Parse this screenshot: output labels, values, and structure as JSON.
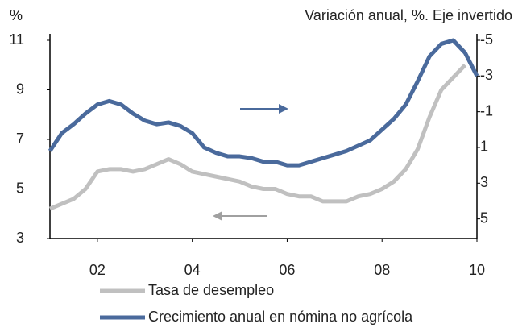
{
  "chart_data": {
    "type": "line",
    "y_label": "%",
    "y2_label": "Variación anual, %. Eje invertido",
    "xlim": [
      2001,
      2010
    ],
    "xticks": [
      {
        "value": 2002,
        "label": "02"
      },
      {
        "value": 2004,
        "label": "04"
      },
      {
        "value": 2006,
        "label": "06"
      },
      {
        "value": 2008,
        "label": "08"
      },
      {
        "value": 2010,
        "label": "10"
      }
    ],
    "ylim": [
      3,
      11
    ],
    "yticks": [
      3,
      5,
      7,
      9,
      11
    ],
    "y2lim": [
      -5,
      6.1
    ],
    "y2ticks": [
      -5,
      -3,
      -1,
      1,
      3,
      5
    ],
    "y2_inverted": true,
    "legend": "bottom",
    "x": [
      2001,
      2001.25,
      2001.5,
      2001.75,
      2002,
      2002.25,
      2002.5,
      2002.75,
      2003,
      2003.25,
      2003.5,
      2003.75,
      2004,
      2004.25,
      2004.5,
      2004.75,
      2005,
      2005.25,
      2005.5,
      2005.75,
      2006,
      2006.25,
      2006.5,
      2006.75,
      2007,
      2007.25,
      2007.5,
      2007.75,
      2008,
      2008.25,
      2008.5,
      2008.75,
      2009,
      2009.25,
      2009.5,
      2009.75,
      2010
    ],
    "series": [
      {
        "name": "Tasa de desempleo",
        "color": "#c0c0c0",
        "values": [
          4.2,
          4.4,
          4.6,
          5.0,
          5.7,
          5.8,
          5.8,
          5.7,
          5.8,
          6.0,
          6.2,
          6.0,
          5.7,
          5.6,
          5.5,
          5.4,
          5.3,
          5.1,
          5.0,
          5.0,
          4.8,
          4.7,
          4.7,
          4.5,
          4.5,
          4.5,
          4.7,
          4.8,
          5.0,
          5.3,
          5.8,
          6.6,
          7.9,
          9.0,
          9.5,
          10.0,
          null
        ]
      },
      {
        "name": "Crecimiento anual en nómina no agrícola",
        "color": "#4a6a9c",
        "axis": "y2",
        "values": [
          1.2,
          0.2,
          -0.3,
          -0.9,
          -1.4,
          -1.6,
          -1.4,
          -0.9,
          -0.5,
          -0.3,
          -0.4,
          -0.2,
          0.2,
          1.0,
          1.3,
          1.5,
          1.5,
          1.6,
          1.8,
          1.8,
          2.0,
          2.0,
          1.8,
          1.6,
          1.4,
          1.2,
          0.9,
          0.6,
          0.0,
          -0.6,
          -1.4,
          -2.7,
          -4.1,
          -4.8,
          -5.0,
          -4.3,
          -3.0
        ]
      }
    ]
  }
}
